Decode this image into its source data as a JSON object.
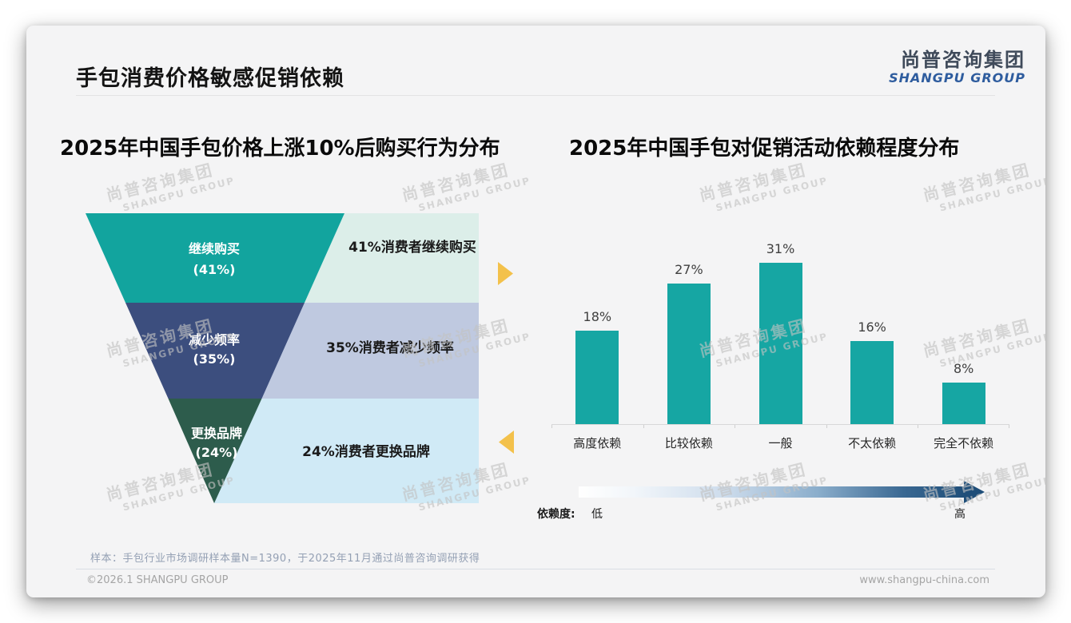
{
  "header": {
    "title": "手包消费价格敏感促销依赖",
    "logo_cn": "尚普咨询集团",
    "logo_en": "SHANGPU GROUP"
  },
  "watermark": {
    "line1": "尚普咨询集团",
    "line2": "SHANGPU GROUP"
  },
  "chart_data": [
    {
      "type": "funnel",
      "title": "2025年中国手包价格上涨10%后购买行为分布",
      "unit": "%",
      "stages": [
        {
          "label": "继续购买",
          "value": 41,
          "line2": "(41%)",
          "annotation": "41%消费者继续购买"
        },
        {
          "label": "减少频率",
          "value": 35,
          "line2": "(35%)",
          "annotation": "35%消费者减少频率"
        },
        {
          "label": "更换品牌",
          "value": 24,
          "line2": "(24%)",
          "annotation": "24%消费者更换品牌"
        }
      ]
    },
    {
      "type": "bar",
      "title": "2025年中国手包对促销活动依赖程度分布",
      "categories": [
        "高度依赖",
        "比较依赖",
        "一般",
        "不太依赖",
        "完全不依赖"
      ],
      "values": [
        18,
        27,
        31,
        16,
        8
      ],
      "unit": "%",
      "ylim": [
        0,
        35
      ],
      "grid": false,
      "legend": "none",
      "dependency_axis": {
        "label": "依赖度:",
        "low": "低",
        "high": "高"
      }
    }
  ],
  "colors": {
    "stage_fills": [
      "#12a49e",
      "#3c4e7e",
      "#2d5c4c"
    ],
    "band_fills": [
      "#dceee9",
      "#bfc9e0",
      "#d0eaf6"
    ],
    "bar_fill": "#16a6a3",
    "gold_arrow": "#f3c14b",
    "gradient_end": "#1f4e79"
  },
  "footnote": "样本：手包行业市场调研样本量N=1390，于2025年11月通过尚普咨询调研获得",
  "footer": {
    "left": "©2026.1 SHANGPU GROUP",
    "right": "www.shangpu-china.com"
  }
}
